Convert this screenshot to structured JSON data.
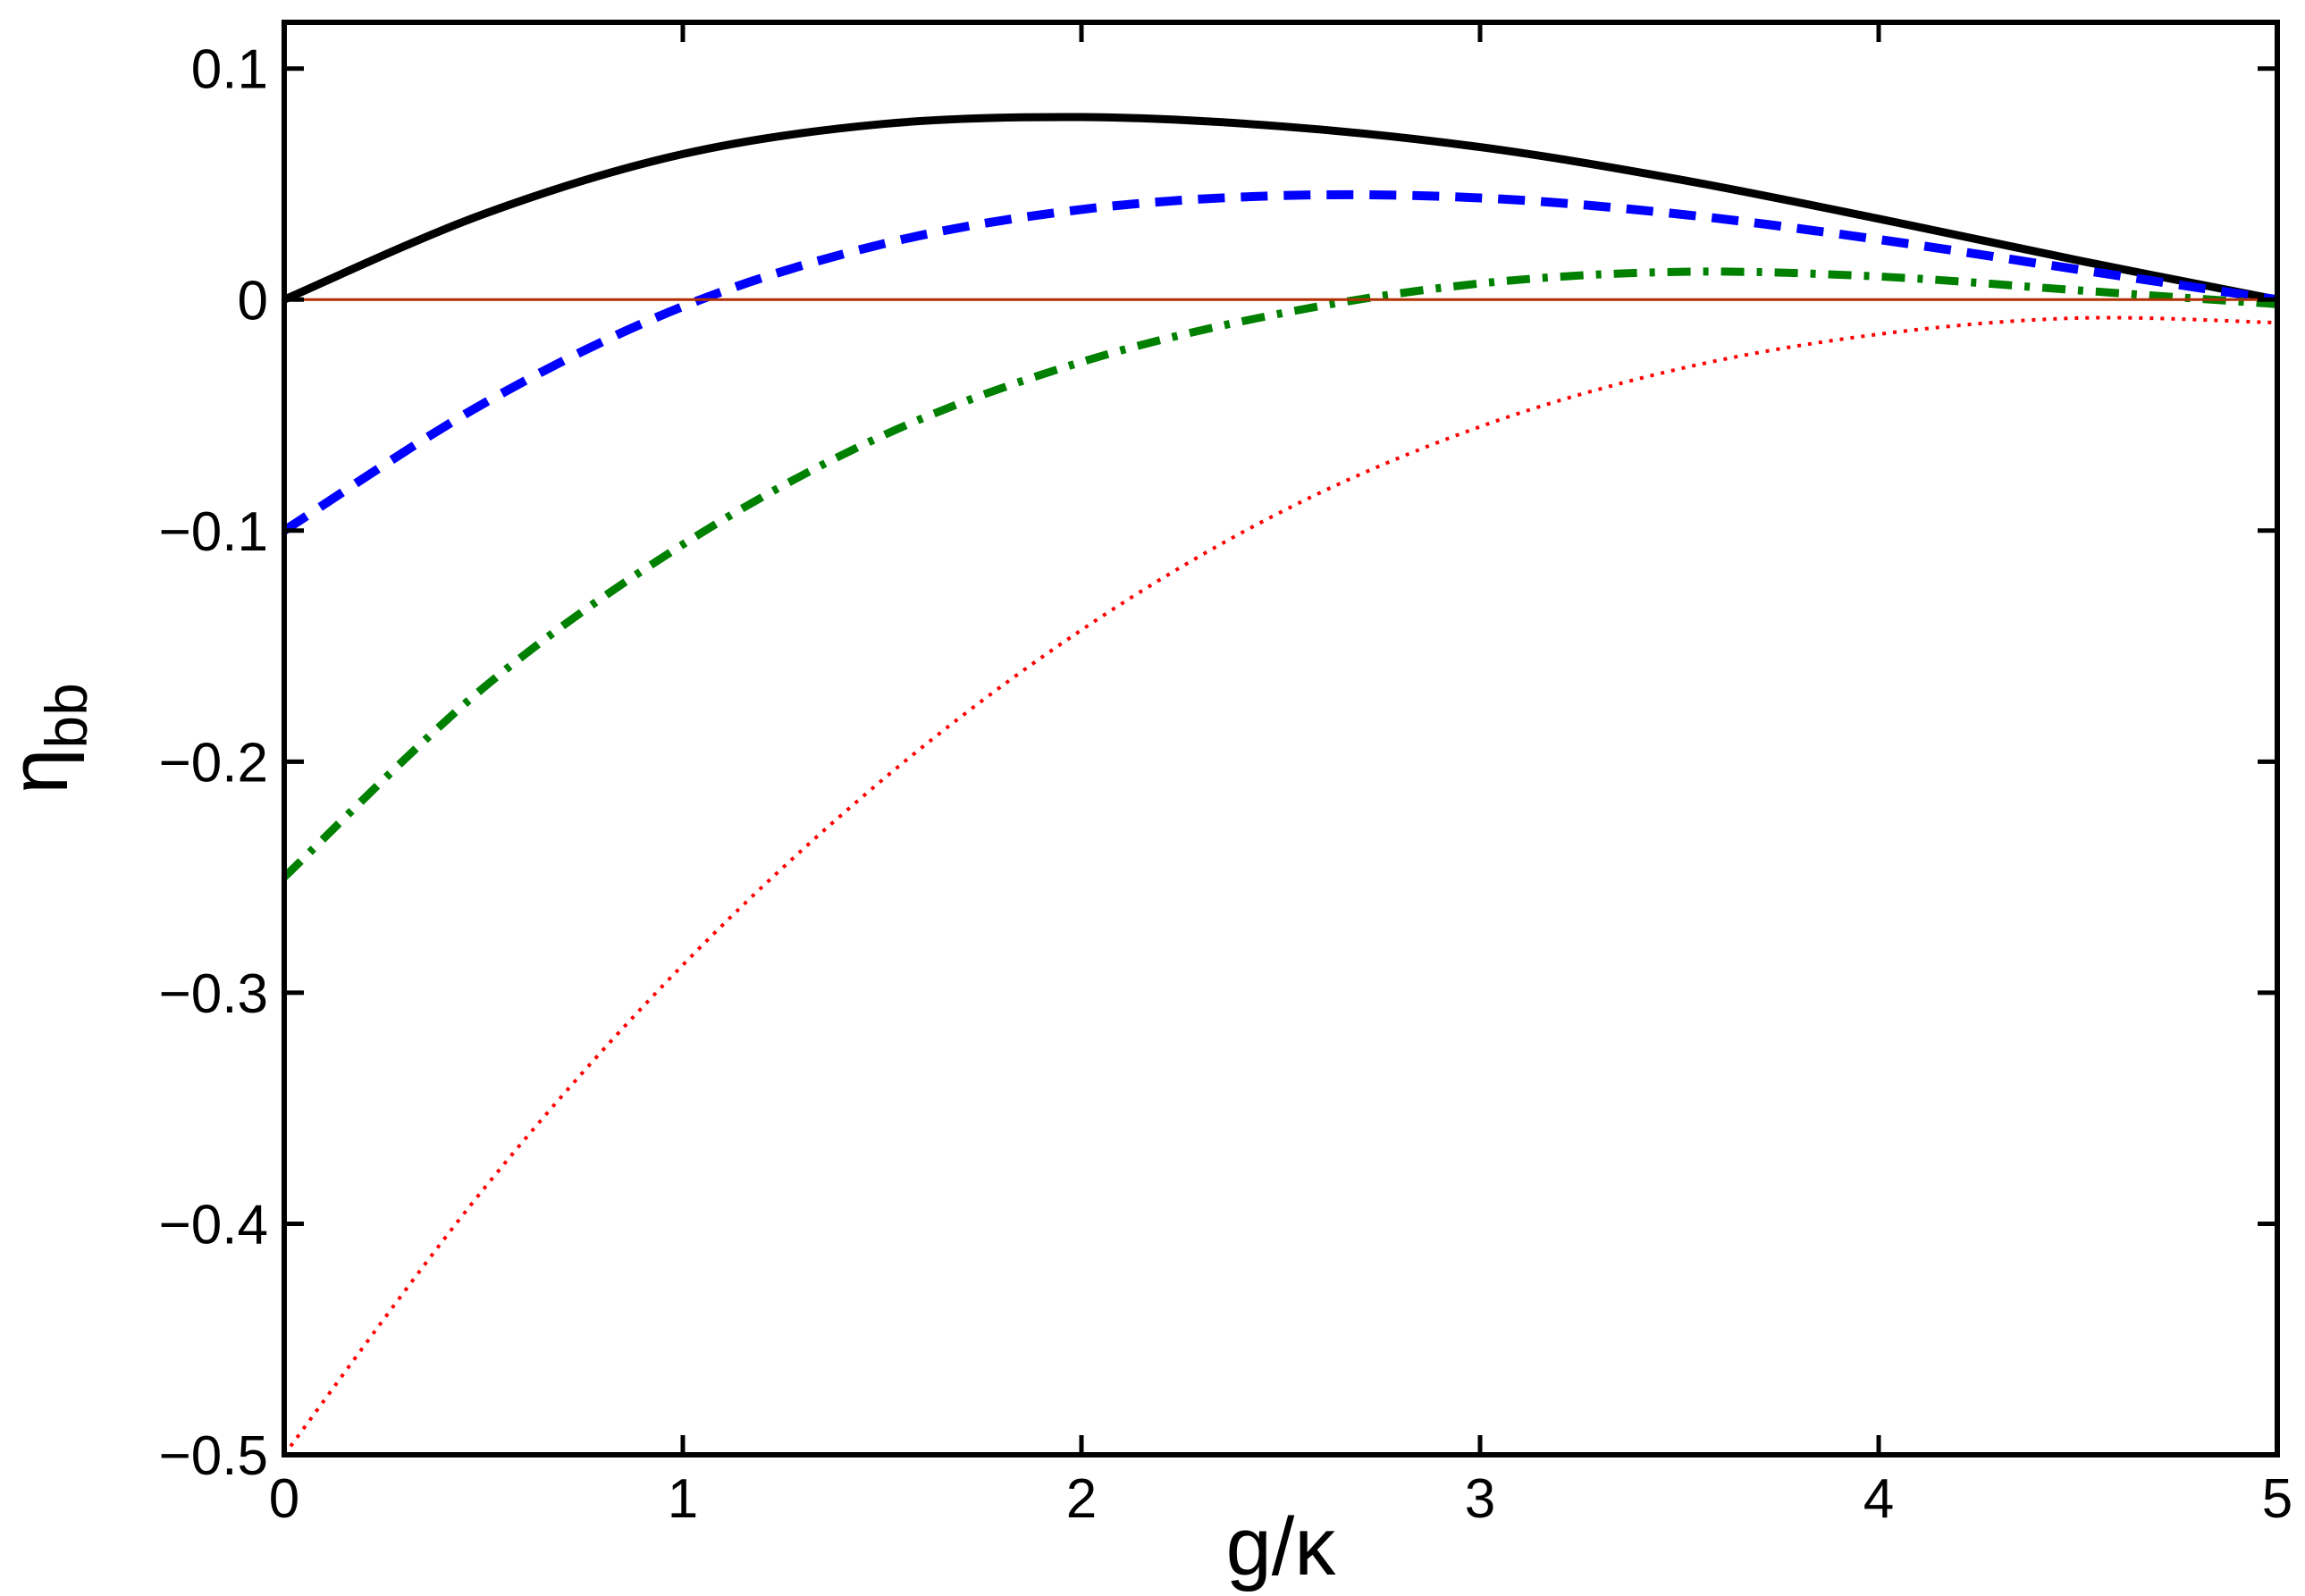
{
  "chart_data": {
    "type": "line",
    "title": "",
    "xlabel": "g/κ",
    "ylabel": {
      "main": "η",
      "sub": "bb"
    },
    "xlim": [
      0,
      5
    ],
    "ylim": [
      -0.5,
      0.12
    ],
    "xticks": [
      0,
      1,
      2,
      3,
      4,
      5
    ],
    "yticks": [
      -0.5,
      -0.4,
      -0.3,
      -0.2,
      -0.1,
      0,
      0.1
    ],
    "xtick_labels": [
      "0",
      "1",
      "2",
      "3",
      "4",
      "5"
    ],
    "ytick_labels": [
      "−0.5",
      "−0.4",
      "−0.3",
      "−0.2",
      "−0.1",
      "0",
      "0.1"
    ],
    "grid": false,
    "x": [
      0,
      0.5,
      1,
      1.5,
      2,
      2.5,
      3,
      3.5,
      4,
      4.5,
      5
    ],
    "series": [
      {
        "style": "solid-thick",
        "color": "#000000",
        "values": [
          0,
          0.037,
          0.063,
          0.076,
          0.079,
          0.075,
          0.066,
          0.052,
          0.035,
          0.017,
          0
        ]
      },
      {
        "style": "dashed",
        "color": "#0000ff",
        "values": [
          -0.1,
          -0.045,
          -0.003,
          0.024,
          0.039,
          0.045,
          0.044,
          0.037,
          0.026,
          0.013,
          0
        ]
      },
      {
        "style": "dash-dot",
        "color": "#008000",
        "values": [
          -0.25,
          -0.168,
          -0.106,
          -0.059,
          -0.027,
          -0.006,
          0.007,
          0.012,
          0.01,
          0.004,
          -0.002
        ]
      },
      {
        "style": "dotted",
        "color": "#ff0000",
        "values": [
          -0.5,
          -0.385,
          -0.288,
          -0.208,
          -0.143,
          -0.092,
          -0.055,
          -0.03,
          -0.015,
          -0.008,
          -0.01
        ]
      },
      {
        "style": "solid-thin",
        "color": "#b03000",
        "values": [
          0,
          0,
          0,
          0,
          0,
          0,
          0,
          0,
          0,
          0,
          0
        ]
      }
    ]
  }
}
